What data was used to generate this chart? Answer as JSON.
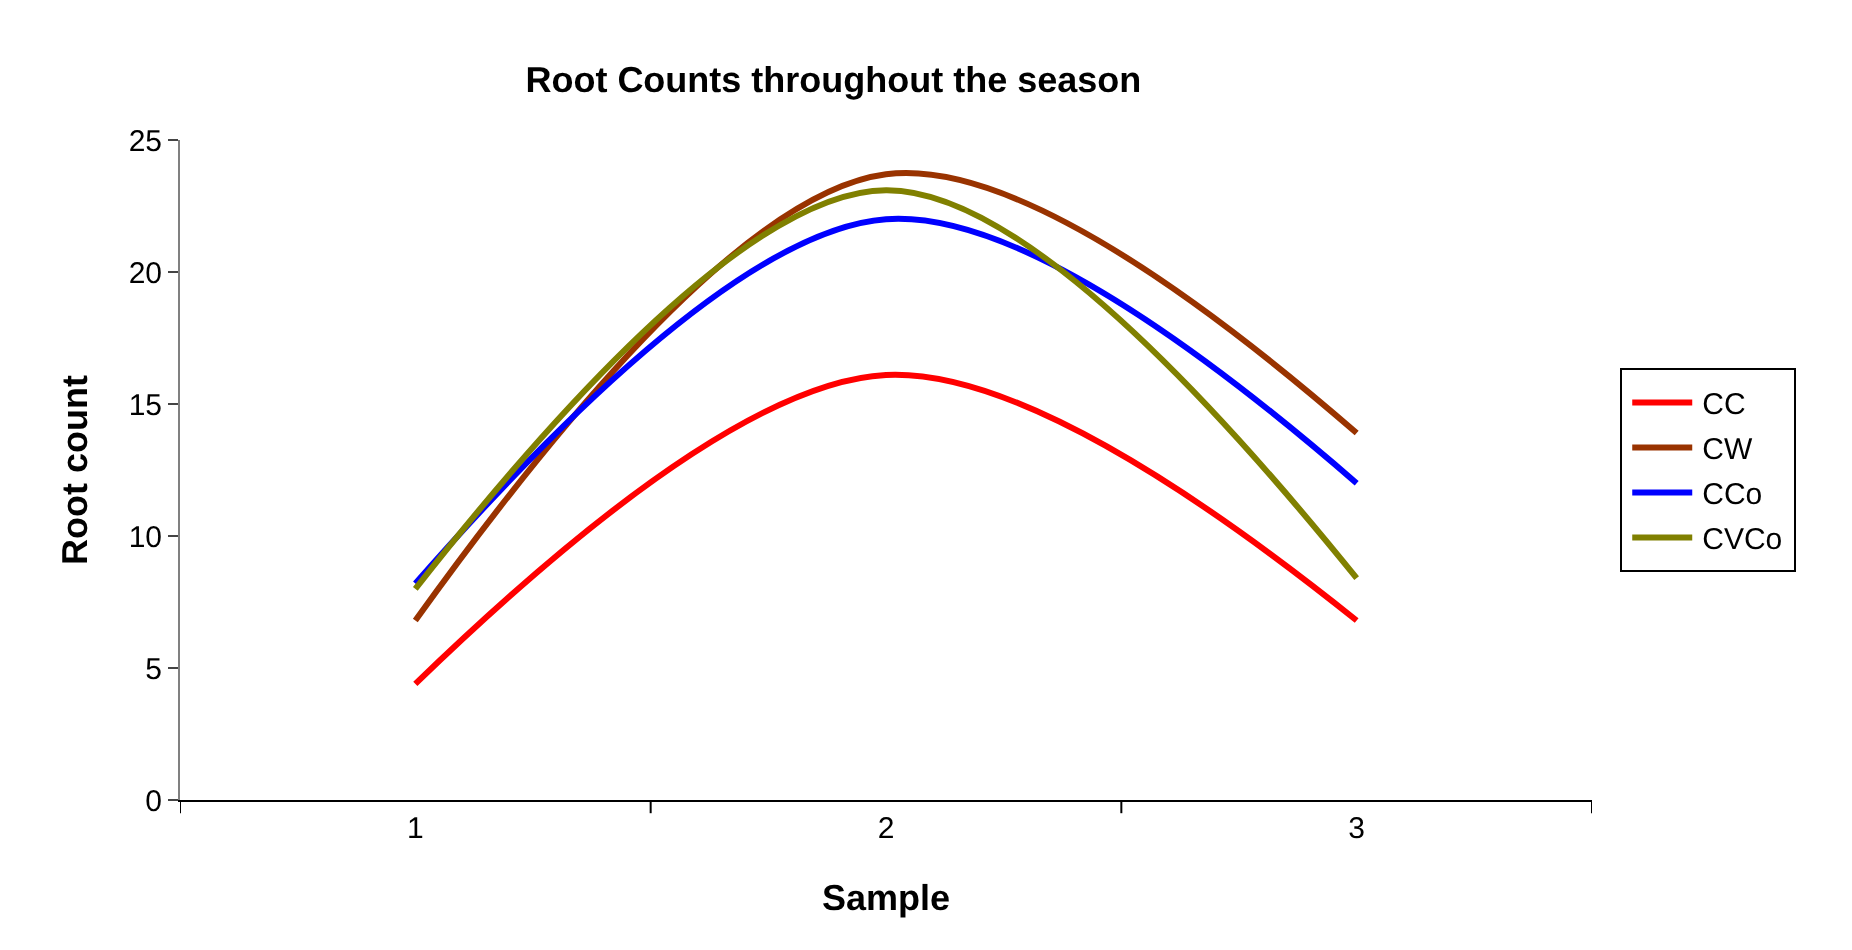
{
  "chart_data": {
    "type": "line",
    "title": "Root Counts throughout the season",
    "xlabel": "Sample",
    "ylabel": "Root count",
    "categories": [
      "1",
      "2",
      "3"
    ],
    "series": [
      {
        "name": "CC",
        "color": "#ff0000",
        "values": [
          4.4,
          16.1,
          6.8
        ]
      },
      {
        "name": "CW",
        "color": "#993300",
        "values": [
          6.8,
          23.7,
          13.9
        ]
      },
      {
        "name": "CCo",
        "color": "#0000ff",
        "values": [
          8.2,
          22.0,
          12.0
        ]
      },
      {
        "name": "CVCo",
        "color": "#808000",
        "values": [
          8.0,
          23.1,
          8.4
        ]
      }
    ],
    "ylim": [
      0,
      25
    ],
    "yticks": [
      0,
      5,
      10,
      15,
      20,
      25
    ],
    "legend": "right",
    "marker": "none",
    "line_style": "solid"
  }
}
